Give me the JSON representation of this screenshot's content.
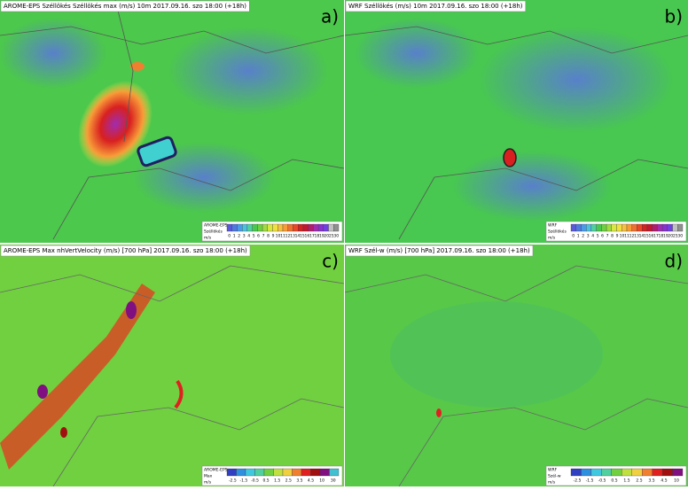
{
  "panels": [
    {
      "title": "AROME-EPS Széllökés Széllökés max (m/s) 10m 2017.09.16. szo 18:00 (+18h)",
      "letter": "a)",
      "legend": {
        "model": "AROME-EPS",
        "variable": "Széllökés",
        "unit": "m/s",
        "ticks": [
          "0",
          "1",
          "2",
          "3",
          "4",
          "5",
          "6",
          "7",
          "8",
          "9",
          "10",
          "11",
          "12",
          "13",
          "14",
          "15",
          "16",
          "17",
          "18",
          "19",
          "20",
          "25",
          "30"
        ],
        "colors": [
          "#5a5ad8",
          "#4f78e0",
          "#4a9ae8",
          "#4cc0e0",
          "#50d0a0",
          "#48c84c",
          "#6cd040",
          "#a0dc40",
          "#d8e840",
          "#f0e040",
          "#f8c040",
          "#f89c38",
          "#f07030",
          "#e84828",
          "#d82020",
          "#c01830",
          "#b01c70",
          "#a02cb0",
          "#8830d0",
          "#7040e0",
          "#c0c0c0",
          "#909090"
        ]
      }
    },
    {
      "title": "WRF Széllökés (m/s) 10m 2017.09.16. szo 18:00 (+18h)",
      "letter": "b)",
      "legend": {
        "model": "WRF",
        "variable": "Széllökés",
        "unit": "m/s",
        "ticks": [
          "0",
          "1",
          "2",
          "3",
          "4",
          "5",
          "6",
          "7",
          "8",
          "9",
          "10",
          "11",
          "12",
          "13",
          "14",
          "15",
          "16",
          "17",
          "18",
          "19",
          "20",
          "25",
          "30"
        ],
        "colors": [
          "#5a5ad8",
          "#4f78e0",
          "#4a9ae8",
          "#4cc0e0",
          "#50d0a0",
          "#48c84c",
          "#6cd040",
          "#a0dc40",
          "#d8e840",
          "#f0e040",
          "#f8c040",
          "#f89c38",
          "#f07030",
          "#e84828",
          "#d82020",
          "#c01830",
          "#b01c70",
          "#a02cb0",
          "#8830d0",
          "#7040e0",
          "#c0c0c0",
          "#909090"
        ]
      }
    },
    {
      "title": "AROME-EPS Max nhVertVelocity (m/s) [700 hPa] 2017.09.16. szo 18:00 (+18h)",
      "letter": "c)",
      "legend": {
        "model": "AROME-EPS",
        "variable": "Max",
        "unit": "m/s",
        "ticks": [
          "-2.5",
          "-1.5",
          "-0.5",
          "0.5",
          "1.5",
          "2.5",
          "3.5",
          "4.5",
          "10",
          "30"
        ],
        "colors": [
          "#3040c0",
          "#3090e0",
          "#40c8e0",
          "#50d0a0",
          "#70d040",
          "#c0e040",
          "#f0d040",
          "#f08030",
          "#e02020",
          "#a01010",
          "#801080",
          "#40c0d0"
        ]
      }
    },
    {
      "title": "WRF Szél-w (m/s) [700 hPa] 2017.09.16. szo 18:00 (+18h)",
      "letter": "d)",
      "legend": {
        "model": "WRF",
        "variable": "Szél-w",
        "unit": "m/s",
        "ticks": [
          "-2.5",
          "-1.5",
          "-0.5",
          "0.5",
          "1.5",
          "2.5",
          "3.5",
          "4.5",
          "10"
        ],
        "colors": [
          "#3040c0",
          "#3090e0",
          "#40c8e0",
          "#50d0a0",
          "#70d040",
          "#c0e040",
          "#f0d040",
          "#f08030",
          "#e02020",
          "#a01010",
          "#801080"
        ]
      }
    }
  ]
}
